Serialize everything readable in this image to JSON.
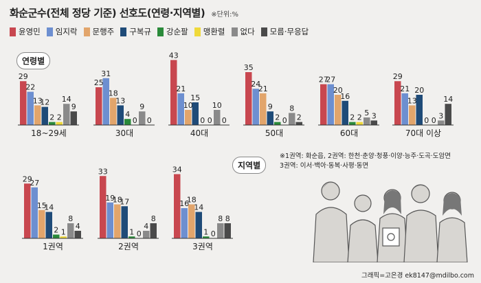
{
  "header": {
    "title": "화순군수(전체 정당 기준) 선호도(연령·지역별)",
    "unit": "※단위:%"
  },
  "legend": [
    {
      "name": "윤영민",
      "color": "#c8474f"
    },
    {
      "name": "임지락",
      "color": "#6d8fd0"
    },
    {
      "name": "문행주",
      "color": "#e2a56b"
    },
    {
      "name": "구복규",
      "color": "#1f4b78"
    },
    {
      "name": "강순팔",
      "color": "#2a8a3a"
    },
    {
      "name": "맹환렬",
      "color": "#efd93a"
    },
    {
      "name": "없다",
      "color": "#8a8a8a"
    },
    {
      "name": "모름·무응답",
      "color": "#4a4a4a"
    }
  ],
  "sections": {
    "age_label": "연령별",
    "region_label": "지역별"
  },
  "notes": {
    "line1": "※1권역: 화순읍, 2권역: 한천·춘양·청풍·이양·능주·도곡·도암면",
    "line2": "3권역: 이서·백아·동복·사평·동면"
  },
  "credit": "그래픽=고은경 ek8147@mdilbo.com",
  "chart_data": [
    {
      "type": "bar",
      "title": "연령별",
      "categories": [
        "18~29세",
        "30대",
        "40대",
        "50대",
        "60대",
        "70대 이상"
      ],
      "series": [
        {
          "name": "윤영민",
          "values": [
            29,
            25,
            43,
            35,
            27,
            29
          ]
        },
        {
          "name": "임지락",
          "values": [
            22,
            31,
            21,
            24,
            27,
            21
          ]
        },
        {
          "name": "문행주",
          "values": [
            13,
            18,
            10,
            21,
            20,
            13
          ]
        },
        {
          "name": "구복규",
          "values": [
            12,
            13,
            15,
            9,
            16,
            20
          ]
        },
        {
          "name": "강순팔",
          "values": [
            2,
            4,
            0,
            2,
            2,
            0
          ]
        },
        {
          "name": "맹환렬",
          "values": [
            2,
            0,
            0,
            0,
            2,
            0
          ]
        },
        {
          "name": "없다",
          "values": [
            14,
            9,
            10,
            8,
            5,
            3
          ]
        },
        {
          "name": "모름·무응답",
          "values": [
            9,
            0,
            0,
            2,
            3,
            14
          ]
        }
      ]
    },
    {
      "type": "bar",
      "title": "지역별",
      "categories": [
        "1권역",
        "2권역",
        "3권역"
      ],
      "series": [
        {
          "name": "윤영민",
          "values": [
            29,
            33,
            34
          ]
        },
        {
          "name": "임지락",
          "values": [
            27,
            19,
            16
          ]
        },
        {
          "name": "문행주",
          "values": [
            15,
            18,
            18
          ]
        },
        {
          "name": "구복규",
          "values": [
            14,
            17,
            14
          ]
        },
        {
          "name": "강순팔",
          "values": [
            2,
            1,
            1
          ]
        },
        {
          "name": "맹환렬",
          "values": [
            1,
            0,
            0
          ]
        },
        {
          "name": "없다",
          "values": [
            8,
            4,
            8
          ]
        },
        {
          "name": "모름·무응답",
          "values": [
            4,
            8,
            8
          ]
        }
      ]
    }
  ]
}
